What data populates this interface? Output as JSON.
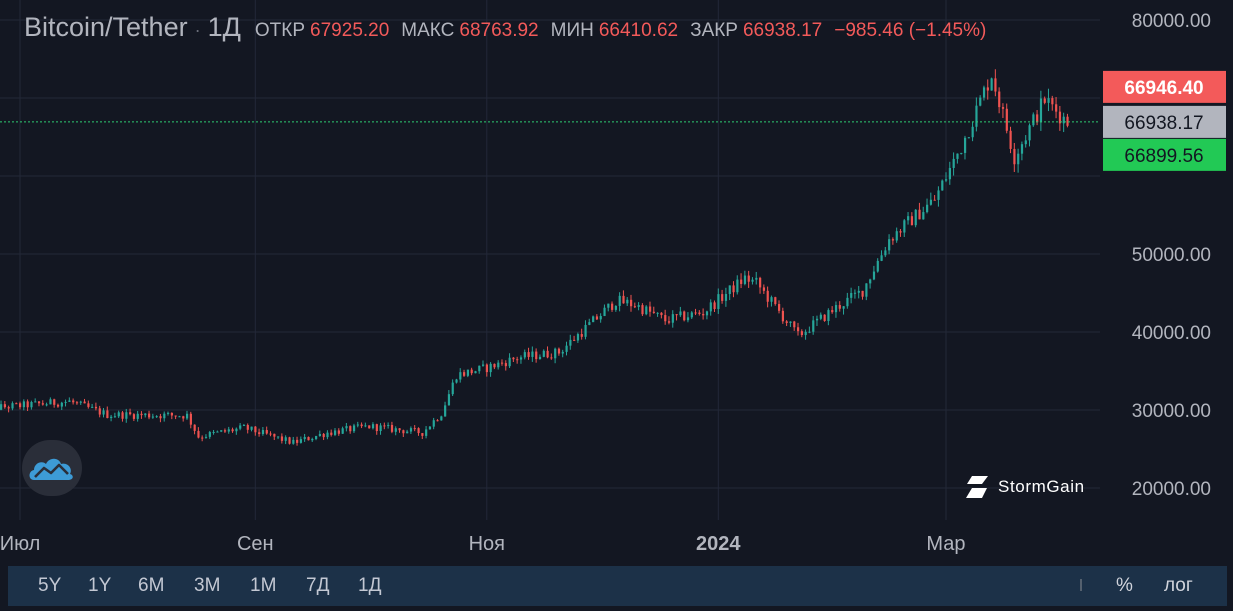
{
  "header": {
    "symbol": "Bitcoin/Tether",
    "separator": "·",
    "timeframe": "1Д",
    "open_label": "ОТКР",
    "open_value": "67925.20",
    "high_label": "МАКС",
    "high_value": "68763.92",
    "low_label": "МИН",
    "low_value": "66410.62",
    "close_label": "ЗАКР",
    "close_value": "66938.17",
    "change": "−985.46 (−1.45%)"
  },
  "watermark": {
    "brand": "StormGain"
  },
  "range_buttons": [
    "5Y",
    "1Y",
    "6M",
    "3M",
    "1M",
    "7Д",
    "1Д"
  ],
  "bottom_right": {
    "percent": "%",
    "log": "лог"
  },
  "colors": {
    "background": "#131722",
    "grid": "#232838",
    "up": "#26a69a",
    "down": "#ef5350",
    "close_line": "#2ecc71",
    "ask": "#f35a5a",
    "last": "#b2b5be",
    "bid": "#22c955",
    "bar": "#1c3148"
  },
  "chart_data": {
    "type": "candlestick",
    "xlabels": [
      {
        "date": "2023-07-01",
        "label": "Июл"
      },
      {
        "date": "2023-09-01",
        "label": "Сен"
      },
      {
        "date": "2023-11-01",
        "label": "Ноя"
      },
      {
        "date": "2024-01-01",
        "label": "2024"
      },
      {
        "date": "2024-03-01",
        "label": "Мар"
      }
    ],
    "y_ticks": [
      "80000.00",
      "50000.00",
      "40000.00",
      "30000.00",
      "20000.00"
    ],
    "ylim": [
      15000,
      80000
    ],
    "grid": true,
    "price_labels": [
      {
        "kind": "ask",
        "value": 66946.4,
        "text": "66946.40"
      },
      {
        "kind": "last",
        "value": 66938.17,
        "text": "66938.17"
      },
      {
        "kind": "bid",
        "value": 66899.56,
        "text": "66899.56"
      }
    ],
    "anchors": [
      [
        "2023-06-20",
        30100
      ],
      [
        "2023-07-14",
        31100
      ],
      [
        "2023-07-24",
        29400
      ],
      [
        "2023-08-14",
        29300
      ],
      [
        "2023-08-17",
        26600
      ],
      [
        "2023-08-29",
        27700
      ],
      [
        "2023-09-11",
        25800
      ],
      [
        "2023-09-20",
        27100
      ],
      [
        "2023-10-01",
        27900
      ],
      [
        "2023-10-15",
        27100
      ],
      [
        "2023-10-20",
        29600
      ],
      [
        "2023-10-24",
        34500
      ],
      [
        "2023-11-01",
        35400
      ],
      [
        "2023-11-09",
        36700
      ],
      [
        "2023-11-20",
        37400
      ],
      [
        "2023-12-05",
        44000
      ],
      [
        "2023-12-10",
        43500
      ],
      [
        "2023-12-18",
        41500
      ],
      [
        "2023-12-28",
        42500
      ],
      [
        "2024-01-08",
        46900
      ],
      [
        "2024-01-11",
        46300
      ],
      [
        "2024-01-22",
        39500
      ],
      [
        "2024-02-01",
        43100
      ],
      [
        "2024-02-08",
        45300
      ],
      [
        "2024-02-15",
        51900
      ],
      [
        "2024-02-27",
        57000
      ],
      [
        "2024-03-05",
        63800
      ],
      [
        "2024-03-13",
        73100
      ],
      [
        "2024-03-19",
        62500
      ],
      [
        "2024-03-27",
        69800
      ],
      [
        "2024-04-02",
        66938
      ]
    ]
  }
}
